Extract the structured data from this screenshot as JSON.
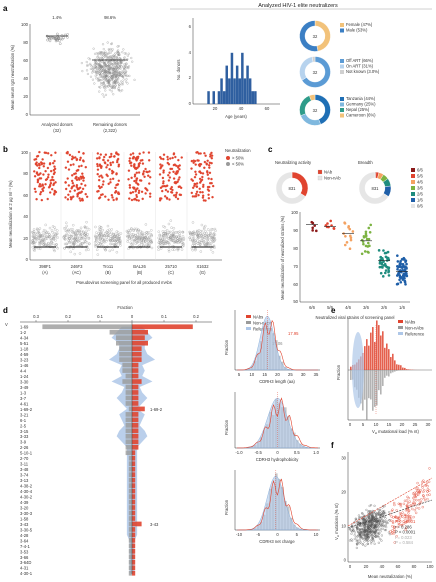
{
  "panels": {
    "a": "a",
    "b": "b",
    "c": "c",
    "d": "d",
    "e": "e",
    "f": "f"
  },
  "panel_a": {
    "header": "Analyzed HIV-1 elite neutralizers",
    "left_ylabel": "Mean serum IgG neutralization (%)",
    "left_pct": [
      "1.4%",
      "98.6%"
    ],
    "left_groups": [
      {
        "label": "Analyzed donors",
        "n": "(32)"
      },
      {
        "label": "Remaining donors",
        "n": "(2,322)"
      }
    ],
    "left_yticks": [
      "100",
      "80",
      "60",
      "40",
      "20",
      "0"
    ],
    "hist_ylabel": "No. donors",
    "hist_xlabel": "Age (years)",
    "hist_xticks": [
      "20",
      "40",
      "60"
    ],
    "hist_yticks": [
      "0",
      "2",
      "4",
      "6"
    ],
    "donut_center": "32",
    "legends": [
      [
        {
          "label": "Female (47%)",
          "color": "#f2c27a"
        },
        {
          "label": "Male (53%)",
          "color": "#3b7fc4"
        }
      ],
      [
        {
          "label": "Off ART (66%)",
          "color": "#5b9bd5"
        },
        {
          "label": "On ART (31%)",
          "color": "#b7d3ee"
        },
        {
          "label": "Not known (3.0%)",
          "color": "#d0d0d0"
        }
      ],
      [
        {
          "label": "Tanzania (44%)",
          "color": "#1f6fb5"
        },
        {
          "label": "Germany (25%)",
          "color": "#7fb8de"
        },
        {
          "label": "Nepal (25%)",
          "color": "#2e9c8a"
        },
        {
          "label": "Cameroon (6%)",
          "color": "#f2c27a"
        }
      ]
    ]
  },
  "panel_b": {
    "ylabel": "Mean neutralization at 2 µg ml⁻¹ (%)",
    "yticks": [
      "100",
      "80",
      "60",
      "40",
      "20",
      "0"
    ],
    "legend_title": "Neutralization",
    "legend": [
      {
        "label": "> 50%",
        "color": "#e0442f"
      },
      {
        "label": "< 50%",
        "color": "#9a9a9a"
      }
    ],
    "strains": [
      {
        "name": "398F1",
        "code": "(A)"
      },
      {
        "name": "246F3",
        "code": "(AC)"
      },
      {
        "name": "Tro11",
        "code": "(B)"
      },
      {
        "name": "BAL26",
        "code": "(B)"
      },
      {
        "name": "25710",
        "code": "(C)"
      },
      {
        "name": "X1632",
        "code": "(G)"
      }
    ],
    "xlabel": "Pseudovirus screening panel for all produced mAbs"
  },
  "panel_c": {
    "titles": [
      "Neutralizing activity",
      "Breadth"
    ],
    "donut_center": "831",
    "nab_legend": [
      {
        "label": "NAb",
        "color": "#e0442f"
      },
      {
        "label": "Non-nAb",
        "color": "#e6e6e6"
      }
    ],
    "breadth_legend": [
      {
        "label": "6/6",
        "color": "#8b1a1a"
      },
      {
        "label": "5/6",
        "color": "#e0442f"
      },
      {
        "label": "4/6",
        "color": "#f4a261"
      },
      {
        "label": "3/6",
        "color": "#7cb342"
      },
      {
        "label": "2/6",
        "color": "#1e8c7e"
      },
      {
        "label": "1/6",
        "color": "#1f5fa8"
      },
      {
        "label": "0/6",
        "color": "#e6e6e6"
      }
    ],
    "ylabel": "Mean neutralization of neutralized strains (%)",
    "yticks": [
      "100",
      "90",
      "80",
      "70",
      "60",
      "50"
    ],
    "xticks": [
      "6/6",
      "5/6",
      "4/6",
      "3/6",
      "2/6",
      "1/6"
    ],
    "xlabel": "Neutralized viral strains of screening panel"
  },
  "panel_d": {
    "fraction_label": "Fraction",
    "top_ticks": [
      "0.3",
      "0.2",
      "0.1",
      "0",
      "0.1",
      "0.2"
    ],
    "vh_label": "V",
    "genes": [
      "1-69",
      "1-2",
      "4-34",
      "5-51",
      "1-18",
      "4-59",
      "3-23",
      "1-46",
      "4-4",
      "1-24",
      "3-30",
      "3-49",
      "1-3",
      "3-7",
      "4-61",
      "1-69-2",
      "3-21",
      "6-1",
      "2-5",
      "3-15",
      "3-33",
      "3-9",
      "2-26",
      "5-10-1",
      "2-70",
      "3-11",
      "3-48",
      "3-74",
      "3-13",
      "4-38-2",
      "4-30-4",
      "4-30-2",
      "4-39",
      "3-20",
      "3-30-3",
      "1-58",
      "3-43",
      "3-30-5",
      "4-28",
      "3-64",
      "7-4-1",
      "3-53",
      "3-66",
      "3-64D",
      "4-31",
      "4-30-1"
    ],
    "callouts": [
      "1-69-2",
      "3-43"
    ],
    "legend": [
      {
        "label": "NAbs",
        "color": "#e0442f"
      },
      {
        "label": "Non-nAbs",
        "color": "#9a9a9a"
      },
      {
        "label": "Reference",
        "color": "#aec7e8"
      }
    ],
    "cdr_len": {
      "xlabel": "CDRH3 length (aa)",
      "ylabel": "Fraction",
      "xticks": [
        "5",
        "10",
        "15",
        "20",
        "25",
        "30",
        "35"
      ],
      "ann1": "17.95",
      "ann2": "17.06"
    },
    "cdr_hyd": {
      "xlabel": "CDRH3 hydrophobicity",
      "ylabel": "Fraction",
      "xticks": [
        "-1.0",
        "-0.5",
        "0",
        "0.5",
        "1.0"
      ]
    },
    "cdr_chg": {
      "xlabel": "CDRH3 net charge",
      "ylabel": "Fraction",
      "xticks": [
        "-10",
        "-5",
        "0",
        "5",
        "10"
      ]
    }
  },
  "panel_e": {
    "ylabel": "Fraction",
    "xlabel": "V",
    "xlabel_rest": " mutational load (% nt)",
    "xticks": [
      "0",
      "5",
      "10",
      "15",
      "20",
      "25",
      "30"
    ],
    "legend": [
      {
        "label": "NAbs",
        "color": "#e0442f"
      },
      {
        "label": "Non-nAbs",
        "color": "#9a9a9a"
      },
      {
        "label": "Reference",
        "color": "#aec7e8"
      }
    ]
  },
  "panel_f": {
    "ylabel": "V",
    "ylabel_rest": " mutations (% nt)",
    "xlabel": "Mean neutralization (%)",
    "xticks": [
      "0",
      "20",
      "40",
      "60",
      "80",
      "100"
    ],
    "yticks": [
      "0",
      "10",
      "20",
      "30"
    ],
    "stats": [
      {
        "text": "r = 0.552",
        "color": "#e0442f"
      },
      {
        "text": "P < 0.0001",
        "color": "#e0442f"
      },
      {
        "text": "r = 0.286",
        "color": "#333333"
      },
      {
        "text": "P < 0.0001",
        "color": "#333333"
      },
      {
        "text": "r = 0.023",
        "color": "#aaaaaa"
      },
      {
        "text": "P = 0.584",
        "color": "#aaaaaa"
      }
    ]
  }
}
